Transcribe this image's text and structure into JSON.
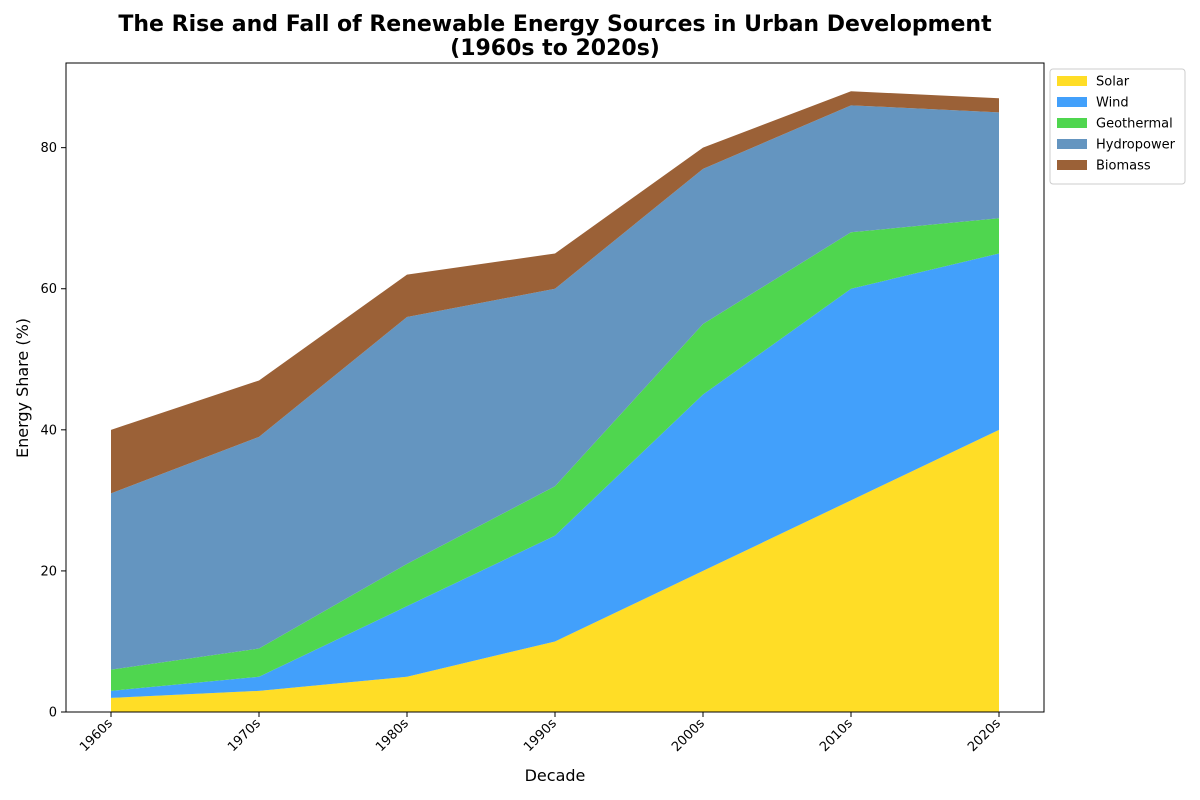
{
  "chart_data": {
    "type": "area",
    "stacked": true,
    "title_lines": [
      "The Rise and Fall of Renewable Energy Sources in Urban Development",
      "(1960s to 2020s)"
    ],
    "xlabel": "Decade",
    "ylabel": "Energy Share (%)",
    "categories": [
      "1960s",
      "1970s",
      "1980s",
      "1990s",
      "2000s",
      "2010s",
      "2020s"
    ],
    "ylim": [
      0,
      92
    ],
    "yticks": [
      0,
      20,
      40,
      60,
      80
    ],
    "grid": false,
    "legend_position": "outside top-right",
    "series": [
      {
        "name": "Solar",
        "color": "#FFDD26",
        "values": [
          2,
          3,
          5,
          10,
          20,
          30,
          40
        ]
      },
      {
        "name": "Wind",
        "color": "#42A0FB",
        "values": [
          1,
          2,
          10,
          15,
          25,
          30,
          25
        ]
      },
      {
        "name": "Geothermal",
        "color": "#4FD64F",
        "values": [
          3,
          4,
          6,
          7,
          10,
          8,
          5
        ]
      },
      {
        "name": "Hydropower",
        "color": "#6495C0",
        "values": [
          25,
          30,
          35,
          28,
          22,
          18,
          15
        ]
      },
      {
        "name": "Biomass",
        "color": "#9B6137",
        "values": [
          9,
          8,
          6,
          5,
          3,
          2,
          2
        ]
      }
    ]
  }
}
